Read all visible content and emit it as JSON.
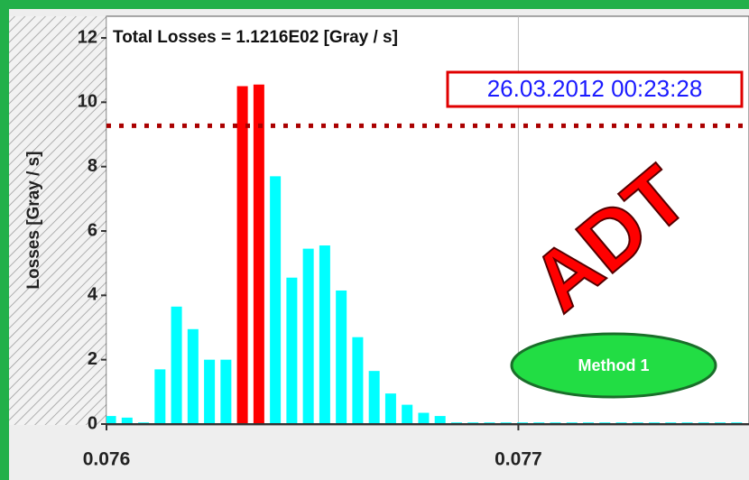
{
  "chart_data": {
    "type": "bar",
    "title": "Total Losses = 1.1216E02 [Gray / s]",
    "timestamp": "26.03.2012 00:23:28",
    "y_label": "Losses [Gray / s]",
    "annotations": [
      "ADT",
      "Method 1"
    ],
    "x": [
      0.07601,
      0.07605,
      0.07609,
      0.07613,
      0.07617,
      0.07621,
      0.07625,
      0.07629,
      0.07633,
      0.07637,
      0.07641,
      0.07645,
      0.07649,
      0.07653,
      0.07657,
      0.07661,
      0.07665,
      0.07669,
      0.07673,
      0.07677,
      0.07681,
      0.07685,
      0.07689,
      0.07693,
      0.07697,
      0.07701,
      0.07705,
      0.07709,
      0.07713,
      0.07717,
      0.07721,
      0.07725,
      0.07729,
      0.07733,
      0.07737,
      0.07741,
      0.07745,
      0.07749,
      0.07753
    ],
    "values": [
      0.25,
      0.2,
      0.05,
      1.7,
      3.65,
      2.95,
      2.0,
      2.0,
      10.5,
      10.55,
      7.7,
      4.55,
      5.45,
      5.55,
      4.15,
      2.7,
      1.65,
      0.95,
      0.6,
      0.35,
      0.25,
      0.05,
      0.05,
      0.05,
      0.05,
      0.05,
      0.05,
      0.05,
      0.05,
      0.05,
      0.05,
      0.05,
      0.05,
      0.05,
      0.05,
      0.05,
      0.05,
      0.05,
      0.05
    ],
    "colors": [
      "#00ffff",
      "#00ffff",
      "#00ffff",
      "#00ffff",
      "#00ffff",
      "#00ffff",
      "#00ffff",
      "#00ffff",
      "#ff0000",
      "#ff0000",
      "#00ffff",
      "#00ffff",
      "#00ffff",
      "#00ffff",
      "#00ffff",
      "#00ffff",
      "#00ffff",
      "#00ffff",
      "#00ffff",
      "#00ffff",
      "#00ffff",
      "#00ffff",
      "#00ffff",
      "#00ffff",
      "#00ffff",
      "#00ffff",
      "#00ffff",
      "#00ffff",
      "#00ffff",
      "#00ffff",
      "#00ffff",
      "#00ffff",
      "#00ffff",
      "#00ffff",
      "#00ffff",
      "#00ffff",
      "#00ffff",
      "#00ffff",
      "#00ffff"
    ],
    "threshold": 9.27,
    "threshold_color": "#aa0000",
    "xlim": [
      0.076,
      0.07756
    ],
    "ylim": [
      0,
      12
    ],
    "xticks": [
      0.076,
      0.077
    ],
    "yticks": [
      0,
      2,
      4,
      6,
      8,
      10,
      12
    ],
    "grid": "x"
  }
}
